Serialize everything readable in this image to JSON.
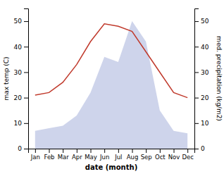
{
  "chart_data": {
    "type": "line",
    "categories": [
      "Jan",
      "Feb",
      "Mar",
      "Apr",
      "May",
      "Jun",
      "Jul",
      "Aug",
      "Sep",
      "Oct",
      "Nov",
      "Dec"
    ],
    "xlabel": "date (month)",
    "ylabel": "max temp (C)",
    "y2label": "med. precipitation (kg/m2)",
    "series": [
      {
        "type": "line",
        "color": "#c0392b",
        "values": [
          21,
          22,
          26,
          33,
          42,
          49,
          48,
          46,
          38,
          30,
          22,
          20
        ]
      },
      {
        "type": "area",
        "axis": "y2",
        "color": "#c5cce8",
        "values": [
          7,
          8,
          9,
          13,
          22,
          36,
          34,
          50,
          42,
          15,
          7,
          6
        ]
      }
    ],
    "ylim": [
      0,
      55
    ],
    "yticks": [
      0,
      10,
      20,
      30,
      40,
      50
    ],
    "y2lim": [
      0,
      55
    ],
    "y2ticks": [
      0,
      10,
      20,
      30,
      40,
      50
    ],
    "grid": false
  }
}
